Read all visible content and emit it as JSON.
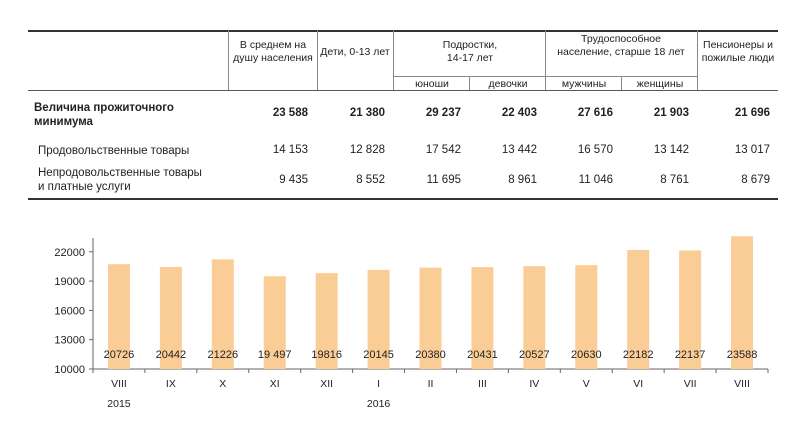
{
  "table": {
    "headers": {
      "avg": "В среднем на душу населения",
      "children": "Дети, 0-13 лет",
      "teens": "Подростки, 14-17 лет",
      "teens_boys": "юноши",
      "teens_girls": "девочки",
      "working": "Трудоспособное население, старше 18 лет",
      "working_men": "мужчины",
      "working_women": "женщины",
      "pensioners": "Пенсионеры и пожилые люди"
    },
    "rows": [
      {
        "label": "Величина прожиточного минимума",
        "bold": true,
        "values": [
          "23 588",
          "21 380",
          "29 237",
          "22 403",
          "27 616",
          "21 903",
          "21 696"
        ]
      },
      {
        "label": "Продовольственные товары",
        "bold": false,
        "values": [
          "14 153",
          "12 828",
          "17 542",
          "13 442",
          "16 570",
          "13 142",
          "13 017"
        ]
      },
      {
        "label": "Непродовольственные товары и платные услуги",
        "bold": false,
        "values": [
          "9 435",
          "8 552",
          "11 695",
          "8 961",
          "11 046",
          "8 761",
          "8 679"
        ]
      }
    ]
  },
  "chart_data": {
    "type": "bar",
    "categories": [
      "VIII",
      "IX",
      "X",
      "XI",
      "XII",
      "I",
      "II",
      "III",
      "IV",
      "V",
      "VI",
      "VII",
      "VIII"
    ],
    "values": [
      20726,
      20442,
      21226,
      19497,
      19816,
      20145,
      20380,
      20431,
      20527,
      20630,
      22182,
      22137,
      23588
    ],
    "data_labels": [
      "20726",
      "20442",
      "21226",
      "19 497",
      "19816",
      "20145",
      "20380",
      "20431",
      "20527",
      "20630",
      "22182",
      "22137",
      "23588"
    ],
    "yticks": [
      10000,
      13000,
      16000,
      19000,
      22000
    ],
    "ylim": [
      10000,
      23000
    ],
    "years": [
      {
        "label": "2015",
        "category_index": 0
      },
      {
        "label": "2016",
        "category_index": 5
      }
    ],
    "bar_color": "#fbcd96",
    "grid": false,
    "title": "",
    "xlabel": "",
    "ylabel": ""
  }
}
